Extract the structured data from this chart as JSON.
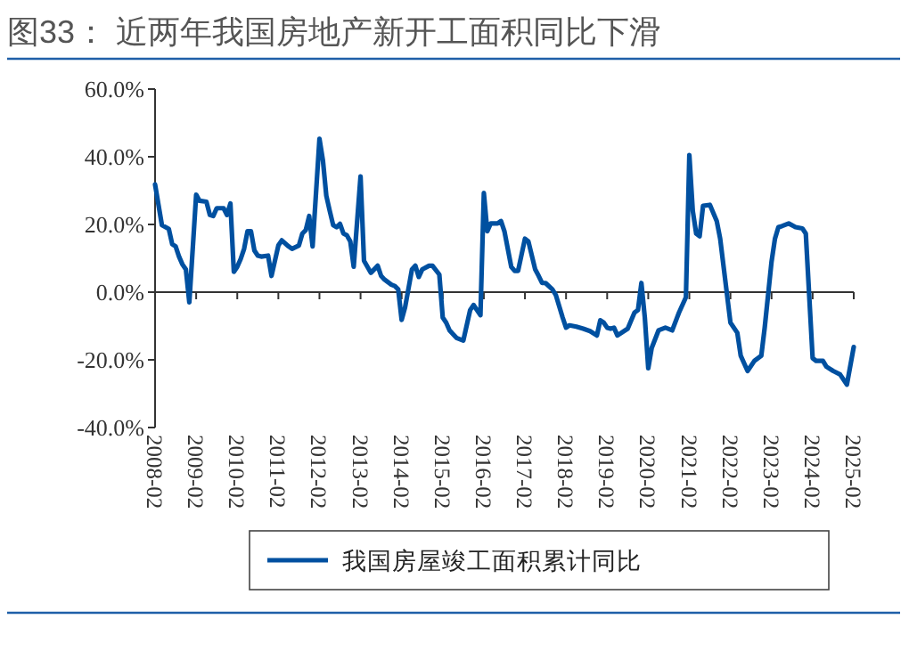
{
  "chart_data": {
    "type": "line",
    "title": "图33：   近两年我国房地产新开工面积同比下滑",
    "xlim": [
      "2008-02",
      "2025-02"
    ],
    "xticks": [
      "2008-02",
      "2009-02",
      "2010-02",
      "2011-02",
      "2012-02",
      "2013-02",
      "2014-02",
      "2015-02",
      "2016-02",
      "2017-02",
      "2018-02",
      "2019-02",
      "2020-02",
      "2021-02",
      "2022-02",
      "2023-02",
      "2024-02",
      "2025-02"
    ],
    "ylim": [
      -40,
      60
    ],
    "yticks": [
      {
        "value": -40,
        "label": "-40.0%"
      },
      {
        "value": -20,
        "label": "-20.0%"
      },
      {
        "value": 0,
        "label": "0.0%"
      },
      {
        "value": 20,
        "label": "20.0%"
      },
      {
        "value": 40,
        "label": "40.0%"
      },
      {
        "value": 60,
        "label": "60.0%"
      }
    ],
    "legend": "bottom",
    "marker": "none",
    "line_style": "solid",
    "series": [
      {
        "name": "我国房屋竣工面积累计同比",
        "color": "#0050a0",
        "x": [
          "2008-02",
          "2008-04",
          "2008-06",
          "2008-07",
          "2008-08",
          "2008-09",
          "2008-10",
          "2008-11",
          "2008-12",
          "2009-02",
          "2009-03",
          "2009-05",
          "2009-06",
          "2009-07",
          "2009-08",
          "2009-10",
          "2009-11",
          "2009-12",
          "2010-01",
          "2010-02",
          "2010-03",
          "2010-04",
          "2010-05",
          "2010-06",
          "2010-07",
          "2010-08",
          "2010-09",
          "2010-11",
          "2010-12",
          "2011-02",
          "2011-03",
          "2011-05",
          "2011-06",
          "2011-08",
          "2011-09",
          "2011-10",
          "2011-11",
          "2011-12",
          "2012-02",
          "2012-03",
          "2012-04",
          "2012-05",
          "2012-06",
          "2012-07",
          "2012-08",
          "2012-09",
          "2012-10",
          "2012-11",
          "2012-12",
          "2013-02",
          "2013-03",
          "2013-04",
          "2013-05",
          "2013-07",
          "2013-08",
          "2013-09",
          "2013-11",
          "2013-12",
          "2014-01",
          "2014-02",
          "2014-03",
          "2014-05",
          "2014-06",
          "2014-07",
          "2014-08",
          "2014-10",
          "2014-11",
          "2015-01",
          "2015-02",
          "2015-03",
          "2015-04",
          "2015-06",
          "2015-08",
          "2015-10",
          "2015-11",
          "2016-01",
          "2016-02",
          "2016-03",
          "2016-04",
          "2016-06",
          "2016-07",
          "2016-08",
          "2016-10",
          "2016-11",
          "2016-12",
          "2017-02",
          "2017-03",
          "2017-05",
          "2017-06",
          "2017-07",
          "2017-08",
          "2017-10",
          "2017-11",
          "2018-01",
          "2018-02",
          "2018-03",
          "2018-05",
          "2018-07",
          "2018-09",
          "2018-11",
          "2018-12",
          "2019-01",
          "2019-02",
          "2019-03",
          "2019-04",
          "2019-05",
          "2019-08",
          "2019-10",
          "2019-11",
          "2019-12",
          "2020-01",
          "2020-02",
          "2020-03",
          "2020-05",
          "2020-07",
          "2020-09",
          "2020-11",
          "2021-01",
          "2021-02",
          "2021-03",
          "2021-04",
          "2021-05",
          "2021-06",
          "2021-08",
          "2021-10",
          "2021-11",
          "2022-02",
          "2022-04",
          "2022-05",
          "2022-07",
          "2022-09",
          "2022-11",
          "2022-12",
          "2023-02",
          "2023-03",
          "2023-04",
          "2023-05",
          "2023-07",
          "2023-09",
          "2023-11",
          "2023-12",
          "2024-02",
          "2024-03",
          "2024-05",
          "2024-06",
          "2024-08",
          "2024-10",
          "2024-12",
          "2025-02"
        ],
        "values": [
          31.8,
          19.8,
          18.7,
          14.2,
          13.5,
          10.5,
          8.2,
          6.7,
          -3,
          28.8,
          27,
          26.7,
          22.8,
          22.5,
          24.8,
          24.8,
          22.8,
          26.2,
          6,
          7.5,
          9.8,
          12.8,
          18,
          18,
          12.3,
          10.8,
          10.5,
          10.8,
          4.8,
          13.8,
          15.3,
          13.5,
          12.8,
          13.8,
          17.3,
          18.3,
          22.5,
          13.5,
          45.3,
          39,
          28.5,
          24,
          19.8,
          19.2,
          20.2,
          17.3,
          16.8,
          15,
          7.5,
          34.2,
          9.3,
          7.5,
          5.7,
          7.8,
          4.8,
          3.7,
          2.2,
          1.8,
          0.8,
          -8.2,
          -4.5,
          6.7,
          7.8,
          4.5,
          6.7,
          7.8,
          7.8,
          5.2,
          -7.5,
          -9,
          -11.3,
          -13.5,
          -14.3,
          -5.3,
          -3.8,
          -6.8,
          29.3,
          18,
          20.3,
          20.3,
          21,
          18,
          7.5,
          6.3,
          6.3,
          15.8,
          15,
          6.7,
          4.8,
          2.7,
          2.7,
          0.8,
          -0.8,
          -7.5,
          -10.5,
          -9.8,
          -10.2,
          -10.8,
          -11.5,
          -12.8,
          -8.3,
          -9,
          -10.5,
          -10.8,
          -10.5,
          -12.8,
          -10.8,
          -6,
          -5.3,
          2.7,
          -7.5,
          -22.5,
          -16.5,
          -11.3,
          -10.5,
          -11.3,
          -6,
          -1.5,
          40.5,
          24,
          17.3,
          16.5,
          25.5,
          25.8,
          21,
          15.8,
          -9,
          -12,
          -18.8,
          -23.3,
          -20.3,
          -18.8,
          -10.5,
          9,
          15.8,
          19.2,
          19.5,
          20.3,
          19.2,
          18.8,
          17.3,
          -19.5,
          -20.3,
          -20.3,
          -22,
          -23.3,
          -24.3,
          -27.3,
          -16.2
        ]
      }
    ]
  }
}
